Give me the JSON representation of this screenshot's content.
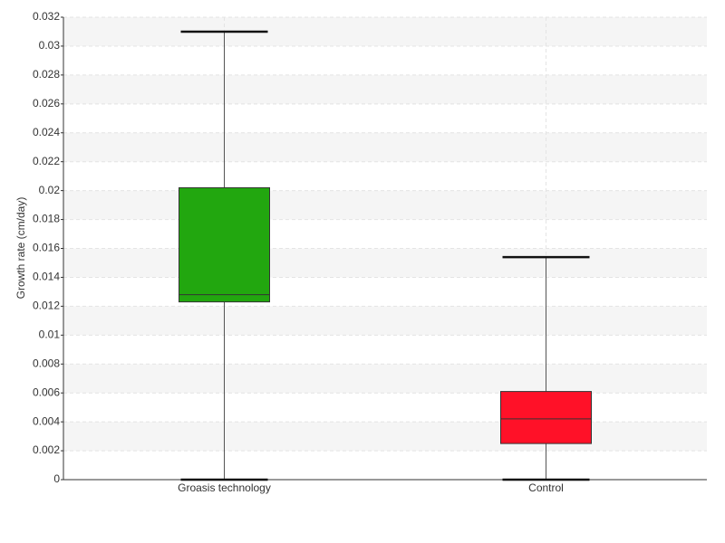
{
  "chart_data": {
    "type": "box",
    "y_label": "Growth rate (cm/day)",
    "categories": [
      "Groasis technology",
      "Control"
    ],
    "boxes": [
      {
        "min": 0,
        "q1": 0.0123,
        "median": 0.0128,
        "q3": 0.0202,
        "max": 0.031,
        "color": "#22a70f"
      },
      {
        "min": 0,
        "q1": 0.0025,
        "median": 0.0042,
        "q3": 0.0061,
        "max": 0.0154,
        "color": "#ff1128"
      }
    ],
    "ylim": [
      0,
      0.032
    ],
    "yticks": [
      0,
      0.002,
      0.004,
      0.006,
      0.008,
      0.01,
      0.012,
      0.014,
      0.016,
      0.018,
      0.02,
      0.022,
      0.024,
      0.026,
      0.028,
      0.03,
      0.032
    ],
    "grid": true
  }
}
